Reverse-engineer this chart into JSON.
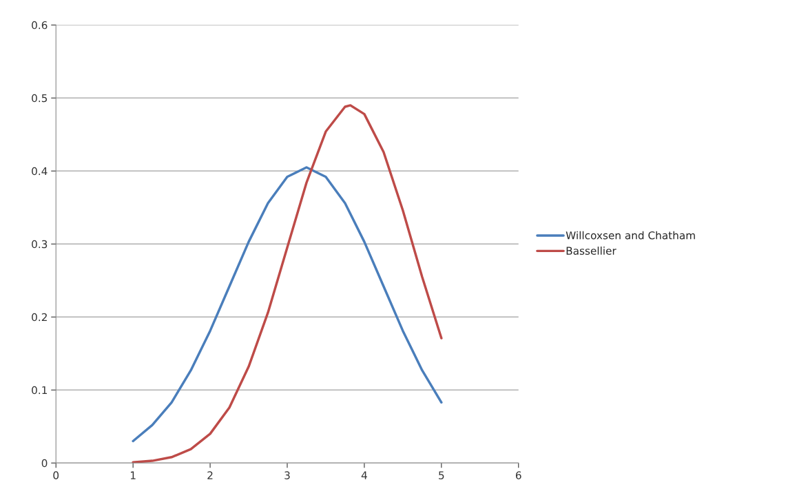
{
  "chart_data": {
    "type": "line",
    "xlim": [
      0,
      6
    ],
    "xticks": [
      0,
      1,
      2,
      3,
      4,
      5,
      6
    ],
    "ylim": [
      0,
      0.6
    ],
    "yticks": [
      0,
      0.1,
      0.2,
      0.3,
      0.4,
      0.5,
      0.6
    ],
    "grid": "y",
    "legend": "right",
    "marker": "none",
    "line_style": "solid",
    "series": [
      {
        "name": "Willcoxsen and Chatham",
        "color": "#4a7ebb",
        "x": [
          1,
          1.25,
          1.5,
          1.75,
          2,
          2.25,
          2.5,
          2.75,
          3,
          3.25,
          3.5,
          3.75,
          4,
          4.25,
          4.5,
          4.75,
          5
        ],
        "values": [
          0.03,
          0.052,
          0.083,
          0.127,
          0.181,
          0.242,
          0.303,
          0.356,
          0.392,
          0.405,
          0.392,
          0.356,
          0.303,
          0.242,
          0.181,
          0.127,
          0.083
        ]
      },
      {
        "name": "Bassellier",
        "color": "#be4b48",
        "x": [
          1,
          1.25,
          1.5,
          1.75,
          2,
          2.25,
          2.5,
          2.75,
          3,
          3.25,
          3.5,
          3.75,
          3.82,
          4,
          4.25,
          4.5,
          4.75,
          5
        ],
        "values": [
          0.001,
          0.003,
          0.008,
          0.019,
          0.04,
          0.076,
          0.132,
          0.206,
          0.295,
          0.384,
          0.454,
          0.488,
          0.49,
          0.478,
          0.426,
          0.346,
          0.255,
          0.171
        ]
      }
    ]
  }
}
